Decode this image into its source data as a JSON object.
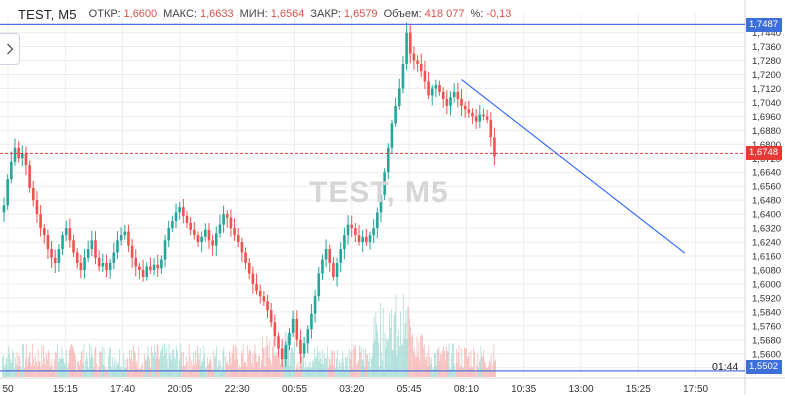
{
  "header": {
    "symbol": "TEST, M5",
    "open_label": "ОТКР:",
    "open_value": "1,6600",
    "high_label": "МАКС:",
    "high_value": "1,6633",
    "low_label": "МИН:",
    "low_value": "1,6564",
    "close_label": "ЗАКР:",
    "close_value": "1,6579",
    "volume_label": "Объем:",
    "volume_value": "418 077",
    "change_label": "%:",
    "change_value": "-0,13"
  },
  "watermark": "TEST, M5",
  "expand_icon": "chevron-right-icon",
  "countdown": "01:44",
  "price_tags": {
    "top": "1,7487",
    "current": "1,6748",
    "bottom": "1,5502"
  },
  "colors": {
    "up": "#26a69a",
    "down": "#ef5350",
    "trendline": "#2962ff",
    "hline": "#4e73df",
    "current_line": "#e53935",
    "grid": "#ececec"
  },
  "chart_data": {
    "type": "candlestick",
    "y_axis_labels": [
      "1,7440",
      "1,7360",
      "1,7280",
      "1,7200",
      "1,7120",
      "1,7040",
      "1,6960",
      "1,6880",
      "1,6800",
      "1,6720",
      "1,6640",
      "1,6560",
      "1,6480",
      "1,6400",
      "1,6320",
      "1,6240",
      "1,6160",
      "1,6080",
      "1,6000",
      "1,5920",
      "1,5840",
      "1,5760",
      "1,5680",
      "1,5600",
      "1,5520"
    ],
    "ylim": [
      1.549,
      1.7512
    ],
    "x_axis_labels": [
      "50",
      "15:15",
      "17:40",
      "20:05",
      "22:30",
      "00:55",
      "03:20",
      "05:45",
      "08:10",
      "10:35",
      "13:00",
      "15:25",
      "17:50"
    ],
    "closes": [
      1.645,
      1.66,
      1.67,
      1.678,
      1.672,
      1.675,
      1.668,
      1.655,
      1.648,
      1.64,
      1.632,
      1.628,
      1.62,
      1.615,
      1.612,
      1.62,
      1.628,
      1.632,
      1.625,
      1.618,
      1.612,
      1.608,
      1.615,
      1.62,
      1.625,
      1.615,
      1.61,
      1.612,
      1.608,
      1.612,
      1.618,
      1.625,
      1.628,
      1.63,
      1.622,
      1.615,
      1.61,
      1.608,
      1.604,
      1.61,
      1.608,
      1.611,
      1.609,
      1.614,
      1.625,
      1.632,
      1.636,
      1.641,
      1.644,
      1.639,
      1.635,
      1.631,
      1.628,
      1.624,
      1.627,
      1.631,
      1.625,
      1.622,
      1.629,
      1.634,
      1.64,
      1.638,
      1.632,
      1.628,
      1.624,
      1.618,
      1.612,
      1.606,
      1.6,
      1.596,
      1.593,
      1.59,
      1.585,
      1.578,
      1.57,
      1.563,
      1.557,
      1.565,
      1.572,
      1.58,
      1.568,
      1.56,
      1.566,
      1.574,
      1.583,
      1.593,
      1.606,
      1.614,
      1.62,
      1.612,
      1.604,
      1.612,
      1.62,
      1.628,
      1.634,
      1.632,
      1.628,
      1.624,
      1.627,
      1.624,
      1.628,
      1.632,
      1.641,
      1.651,
      1.664,
      1.678,
      1.692,
      1.702,
      1.712,
      1.726,
      1.744,
      1.732,
      1.728,
      1.726,
      1.722,
      1.716,
      1.708,
      1.712,
      1.714,
      1.71,
      1.706,
      1.702,
      1.707,
      1.71,
      1.706,
      1.702,
      1.7,
      1.698,
      1.696,
      1.693,
      1.697,
      1.696,
      1.694,
      1.684,
      1.673
    ],
    "trendline": [
      [
        125,
        1.7171
      ],
      [
        186,
        1.6177
      ]
    ],
    "horizontal_lines": [
      1.7487,
      1.5502
    ],
    "current_price": 1.6748
  }
}
